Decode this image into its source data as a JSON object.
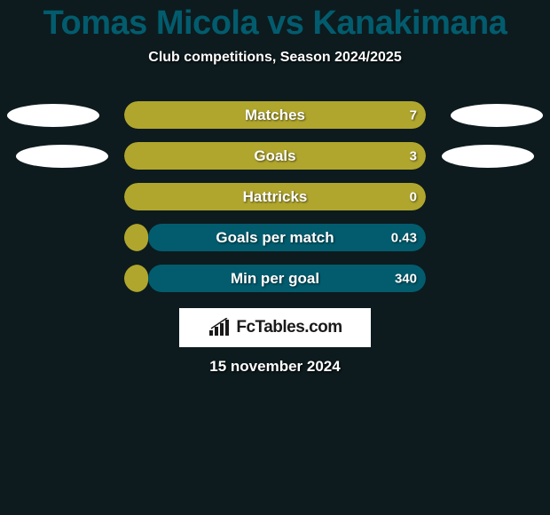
{
  "title": "Tomas Micola vs Kanakimana",
  "subtitle": "Club competitions, Season 2024/2025",
  "date": "15 november 2024",
  "logo": {
    "text": "FcTables.com",
    "bg_color": "#ffffff",
    "text_color": "#1a1a1a"
  },
  "colors": {
    "background": "#0d1b1e",
    "title_color": "#025c6e",
    "bar_left": "#b0a62e",
    "bar_right": "#025c6e",
    "ellipse": "#ffffff",
    "text": "#ffffff"
  },
  "stats": [
    {
      "label": "Matches",
      "left_value": "",
      "right_value": "7",
      "left_pct": 100,
      "right_pct": 0,
      "show_left_ellipse": true,
      "show_right_ellipse": true,
      "ellipse_row": 1
    },
    {
      "label": "Goals",
      "left_value": "",
      "right_value": "3",
      "left_pct": 100,
      "right_pct": 0,
      "show_left_ellipse": true,
      "show_right_ellipse": true,
      "ellipse_row": 2
    },
    {
      "label": "Hattricks",
      "left_value": "",
      "right_value": "0",
      "left_pct": 100,
      "right_pct": 0,
      "show_left_ellipse": false,
      "show_right_ellipse": false,
      "ellipse_row": 0
    },
    {
      "label": "Goals per match",
      "left_value": "",
      "right_value": "0.43",
      "left_pct": 8,
      "right_pct": 92,
      "show_left_ellipse": false,
      "show_right_ellipse": false,
      "ellipse_row": 0
    },
    {
      "label": "Min per goal",
      "left_value": "",
      "right_value": "340",
      "left_pct": 8,
      "right_pct": 92,
      "show_left_ellipse": false,
      "show_right_ellipse": false,
      "ellipse_row": 0
    }
  ]
}
